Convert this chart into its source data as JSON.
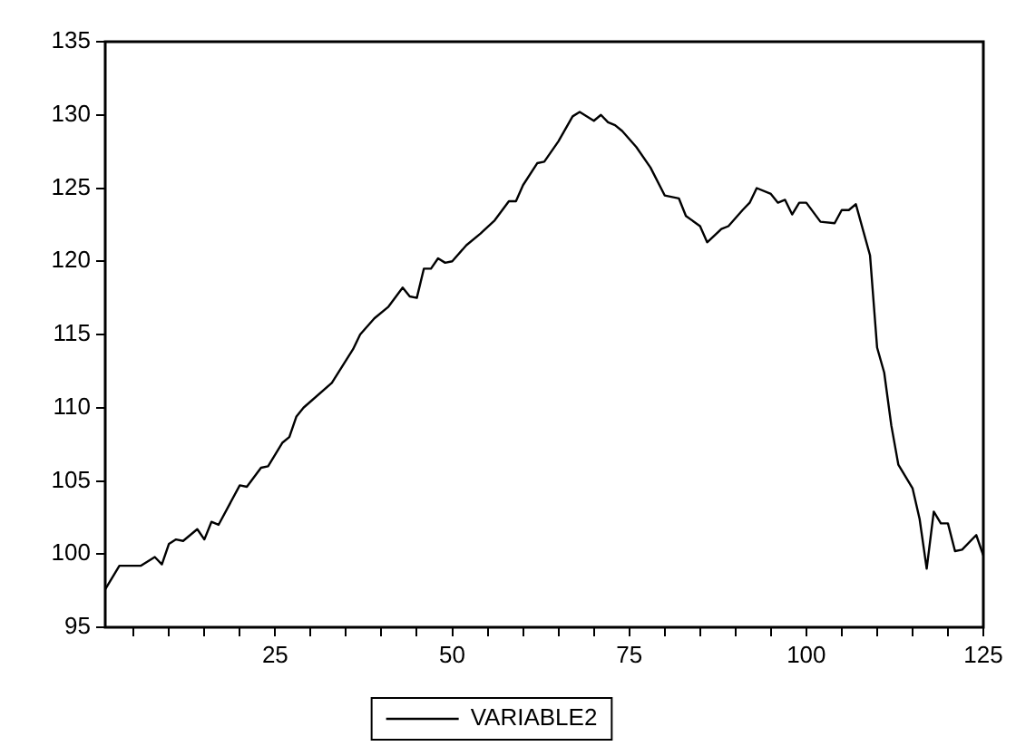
{
  "chart_data": {
    "type": "line",
    "xlim": [
      1,
      125
    ],
    "xticks": [
      {
        "value": 5,
        "label": null
      },
      {
        "value": 10,
        "label": null
      },
      {
        "value": 15,
        "label": null
      },
      {
        "value": 20,
        "label": null
      },
      25,
      {
        "value": 30,
        "label": null
      },
      {
        "value": 35,
        "label": null
      },
      {
        "value": 40,
        "label": null
      },
      {
        "value": 45,
        "label": null
      },
      50,
      {
        "value": 55,
        "label": null
      },
      {
        "value": 60,
        "label": null
      },
      {
        "value": 65,
        "label": null
      },
      {
        "value": 70,
        "label": null
      },
      75,
      {
        "value": 80,
        "label": null
      },
      {
        "value": 85,
        "label": null
      },
      {
        "value": 90,
        "label": null
      },
      {
        "value": 95,
        "label": null
      },
      100,
      {
        "value": 105,
        "label": null
      },
      {
        "value": 110,
        "label": null
      },
      {
        "value": 115,
        "label": null
      },
      {
        "value": 120,
        "label": null
      },
      125
    ],
    "ylim": [
      95,
      135
    ],
    "yticks": [
      95,
      100,
      105,
      110,
      115,
      120,
      125,
      130,
      135
    ],
    "grid": false,
    "legend": "bottom",
    "marker": "none",
    "line_style": "solid",
    "series": [
      {
        "name": "VARIABLE2",
        "color": "#000000",
        "x": [
          1,
          3,
          6,
          8,
          9,
          10,
          11,
          12,
          14,
          15,
          16,
          17,
          20,
          21,
          23,
          24,
          26,
          27,
          28,
          29,
          33,
          36,
          37,
          39,
          41,
          43,
          44,
          45,
          46,
          47,
          48,
          49,
          50,
          52,
          54,
          56,
          58,
          59,
          60,
          62,
          63,
          65,
          67,
          68,
          70,
          71,
          72,
          73,
          74,
          76,
          78,
          80,
          82,
          83,
          85,
          86,
          88,
          89,
          91,
          92,
          93,
          95,
          96,
          97,
          98,
          99,
          100,
          102,
          104,
          105,
          106,
          107,
          109,
          110,
          111,
          112,
          113,
          115,
          116,
          117,
          118,
          119,
          120,
          121,
          122,
          124,
          125
        ],
        "values": [
          97.6,
          99.2,
          99.2,
          99.8,
          99.3,
          100.7,
          101.0,
          100.9,
          101.7,
          101.0,
          102.2,
          102.0,
          104.7,
          104.6,
          105.9,
          106.0,
          107.6,
          108.0,
          109.4,
          110.0,
          111.7,
          114.0,
          115.0,
          116.1,
          116.9,
          118.2,
          117.6,
          117.5,
          119.5,
          119.5,
          120.2,
          119.9,
          120.0,
          121.1,
          121.9,
          122.8,
          124.1,
          124.1,
          125.2,
          126.7,
          126.8,
          128.2,
          129.9,
          130.2,
          129.6,
          130.0,
          129.5,
          129.3,
          128.9,
          127.8,
          126.4,
          124.5,
          124.3,
          123.1,
          122.4,
          121.3,
          122.2,
          122.4,
          123.5,
          124.0,
          125.0,
          124.6,
          124.0,
          124.2,
          123.2,
          124.0,
          124.0,
          122.7,
          122.6,
          123.5,
          123.5,
          123.9,
          120.4,
          114.1,
          112.4,
          108.8,
          106.1,
          104.5,
          102.4,
          99.0,
          102.9,
          102.1,
          102.1,
          100.2,
          100.3,
          101.3,
          99.9
        ]
      }
    ]
  }
}
